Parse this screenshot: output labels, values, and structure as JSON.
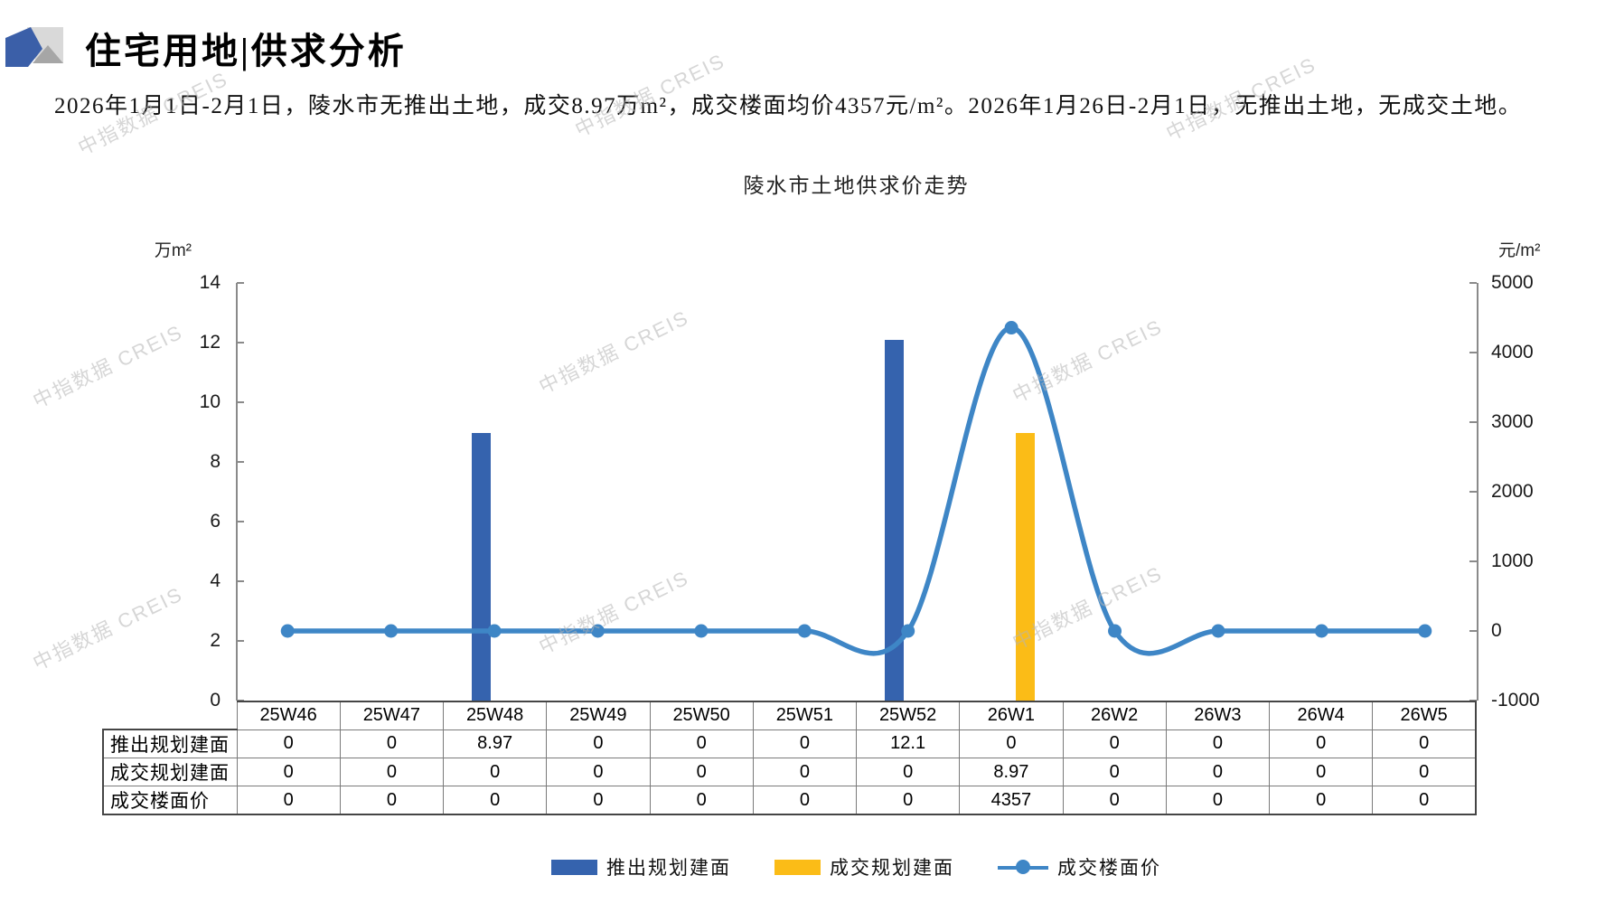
{
  "header": {
    "title": "住宅用地|供求分析"
  },
  "summary": {
    "text": "2026年1月1日-2月1日，陵水市无推出土地，成交8.97万m²，成交楼面均价4357元/m²。2026年1月26日-2月1日，无推出土地，无成交土地。"
  },
  "watermark": {
    "text": "中指数据 CREIS"
  },
  "chart_data": {
    "type": "bar+line",
    "title": "陵水市土地供求价走势",
    "categories": [
      "25W46",
      "25W47",
      "25W48",
      "25W49",
      "25W50",
      "25W51",
      "25W52",
      "26W1",
      "26W2",
      "26W3",
      "26W4",
      "26W5"
    ],
    "series": [
      {
        "name": "推出规划建面",
        "type": "bar",
        "axis": "left",
        "color": "#3563AE",
        "values": [
          0,
          0,
          8.97,
          0,
          0,
          0,
          12.1,
          0,
          0,
          0,
          0,
          0
        ]
      },
      {
        "name": "成交规划建面",
        "type": "bar",
        "axis": "left",
        "color": "#FBBC17",
        "values": [
          0,
          0,
          0,
          0,
          0,
          0,
          0,
          8.97,
          0,
          0,
          0,
          0
        ]
      },
      {
        "name": "成交楼面价",
        "type": "line",
        "axis": "right",
        "color": "#3E86C6",
        "values": [
          0,
          0,
          0,
          0,
          0,
          0,
          0,
          4357,
          0,
          0,
          0,
          0
        ]
      }
    ],
    "left_axis": {
      "unit": "万m²",
      "min": 0,
      "max": 14,
      "ticks": [
        14,
        12,
        10,
        8,
        6,
        4,
        2,
        0
      ]
    },
    "right_axis": {
      "unit": "元/m²",
      "min": -1000,
      "max": 5000,
      "ticks": [
        5000,
        4000,
        3000,
        2000,
        1000,
        0,
        -1000
      ]
    },
    "legend_position": "bottom",
    "grid": false,
    "line_smooth": true
  },
  "table": {
    "columns": [
      "25W46",
      "25W47",
      "25W48",
      "25W49",
      "25W50",
      "25W51",
      "25W52",
      "26W1",
      "26W2",
      "26W3",
      "26W4",
      "26W5"
    ],
    "rows": [
      {
        "header": "推出规划建面",
        "values": [
          "0",
          "0",
          "8.97",
          "0",
          "0",
          "0",
          "12.1",
          "0",
          "0",
          "0",
          "0",
          "0"
        ]
      },
      {
        "header": "成交规划建面",
        "values": [
          "0",
          "0",
          "0",
          "0",
          "0",
          "0",
          "0",
          "8.97",
          "0",
          "0",
          "0",
          "0"
        ]
      },
      {
        "header": "成交楼面价",
        "values": [
          "0",
          "0",
          "0",
          "0",
          "0",
          "0",
          "0",
          "4357",
          "0",
          "0",
          "0",
          "0"
        ]
      }
    ]
  }
}
